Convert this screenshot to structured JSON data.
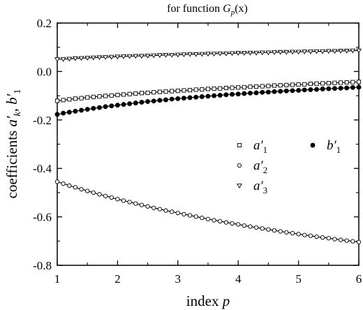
{
  "chart_data": {
    "type": "scatter",
    "title": {
      "prefix": "for function ",
      "symbol": "G",
      "sub": "p",
      "suffix": "(x)"
    },
    "xlabel": {
      "text": "index ",
      "var": "p"
    },
    "ylabel": {
      "prefix": "coefficients ",
      "a": "a′",
      "a_sub": "k",
      "sep": ", ",
      "b": "b′",
      "b_sub": "1"
    },
    "xlim": [
      1,
      6
    ],
    "ylim": [
      -0.8,
      0.2
    ],
    "x_ticks": [
      "1",
      "2",
      "3",
      "4",
      "5",
      "6"
    ],
    "y_ticks": [
      "-0.8",
      "-0.6",
      "-0.4",
      "-0.2",
      "0.0",
      "0.2"
    ],
    "x_tick_values": [
      1,
      2,
      3,
      4,
      5,
      6
    ],
    "y_tick_values": [
      -0.8,
      -0.6,
      -0.4,
      -0.2,
      0.0,
      0.2
    ],
    "grid": false,
    "legend_position": "right-middle",
    "x": [
      1.0,
      1.1,
      1.2,
      1.3,
      1.4,
      1.5,
      1.6,
      1.7,
      1.8,
      1.9,
      2.0,
      2.1,
      2.2,
      2.3,
      2.4,
      2.5,
      2.6,
      2.7,
      2.8,
      2.9,
      3.0,
      3.1,
      3.2,
      3.3,
      3.4,
      3.5,
      3.6,
      3.7,
      3.8,
      3.9,
      4.0,
      4.1,
      4.2,
      4.3,
      4.4,
      4.5,
      4.6,
      4.7,
      4.8,
      4.9,
      5.0,
      5.1,
      5.2,
      5.3,
      5.4,
      5.5,
      5.6,
      5.7,
      5.8,
      5.9,
      6.0
    ],
    "series": [
      {
        "label": "a′",
        "sub": "1",
        "marker": "square-open",
        "values": [
          -0.121,
          -0.118,
          -0.115,
          -0.112,
          -0.11,
          -0.107,
          -0.105,
          -0.103,
          -0.101,
          -0.099,
          -0.097,
          -0.095,
          -0.093,
          -0.091,
          -0.089,
          -0.088,
          -0.086,
          -0.084,
          -0.083,
          -0.081,
          -0.08,
          -0.078,
          -0.077,
          -0.075,
          -0.074,
          -0.072,
          -0.071,
          -0.07,
          -0.068,
          -0.067,
          -0.066,
          -0.065,
          -0.063,
          -0.062,
          -0.061,
          -0.06,
          -0.058,
          -0.057,
          -0.056,
          -0.055,
          -0.054,
          -0.053,
          -0.051,
          -0.05,
          -0.049,
          -0.048,
          -0.047,
          -0.046,
          -0.045,
          -0.044,
          -0.043
        ]
      },
      {
        "label": "a′",
        "sub": "2",
        "marker": "circle-open",
        "values": [
          -0.455,
          -0.463,
          -0.471,
          -0.478,
          -0.486,
          -0.493,
          -0.5,
          -0.507,
          -0.514,
          -0.52,
          -0.527,
          -0.533,
          -0.539,
          -0.545,
          -0.551,
          -0.557,
          -0.563,
          -0.568,
          -0.574,
          -0.579,
          -0.584,
          -0.589,
          -0.594,
          -0.599,
          -0.604,
          -0.609,
          -0.614,
          -0.618,
          -0.623,
          -0.627,
          -0.631,
          -0.636,
          -0.64,
          -0.644,
          -0.648,
          -0.652,
          -0.656,
          -0.66,
          -0.664,
          -0.667,
          -0.671,
          -0.675,
          -0.678,
          -0.682,
          -0.685,
          -0.688,
          -0.692,
          -0.695,
          -0.698,
          -0.701,
          -0.704
        ]
      },
      {
        "label": "a′",
        "sub": "3",
        "marker": "triangle-down-open",
        "values": [
          0.05,
          0.051,
          0.052,
          0.054,
          0.055,
          0.056,
          0.057,
          0.058,
          0.059,
          0.06,
          0.061,
          0.062,
          0.063,
          0.064,
          0.064,
          0.065,
          0.066,
          0.067,
          0.068,
          0.068,
          0.069,
          0.07,
          0.071,
          0.071,
          0.072,
          0.073,
          0.073,
          0.074,
          0.074,
          0.075,
          0.076,
          0.076,
          0.077,
          0.077,
          0.078,
          0.078,
          0.079,
          0.08,
          0.08,
          0.081,
          0.081,
          0.082,
          0.082,
          0.083,
          0.083,
          0.084,
          0.084,
          0.085,
          0.085,
          0.086,
          0.086
        ]
      },
      {
        "label": "b′",
        "sub": "1",
        "marker": "circle-filled",
        "values": [
          -0.177,
          -0.172,
          -0.168,
          -0.164,
          -0.16,
          -0.156,
          -0.152,
          -0.149,
          -0.145,
          -0.142,
          -0.139,
          -0.136,
          -0.133,
          -0.13,
          -0.127,
          -0.124,
          -0.122,
          -0.119,
          -0.117,
          -0.114,
          -0.112,
          -0.11,
          -0.108,
          -0.106,
          -0.104,
          -0.102,
          -0.1,
          -0.098,
          -0.096,
          -0.094,
          -0.093,
          -0.091,
          -0.089,
          -0.088,
          -0.086,
          -0.085,
          -0.083,
          -0.082,
          -0.08,
          -0.079,
          -0.078,
          -0.076,
          -0.075,
          -0.074,
          -0.072,
          -0.071,
          -0.07,
          -0.069,
          -0.068,
          -0.066,
          -0.065
        ]
      }
    ]
  },
  "colors": {
    "ink": "#000000",
    "background": "#ffffff"
  }
}
